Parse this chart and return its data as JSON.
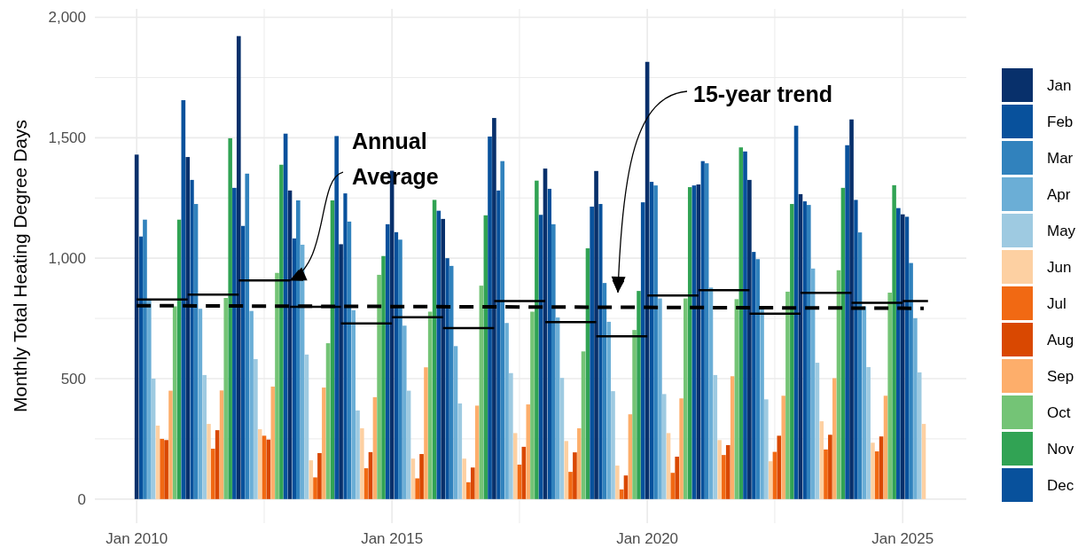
{
  "chart_data": {
    "type": "bar",
    "ylabel": "Monthly Total Heating Degree Days",
    "xlim": [
      "2009-03-08",
      "2026-04-01"
    ],
    "ylim": [
      -100,
      2035
    ],
    "xticks": [
      {
        "value": "2010-01",
        "label": "Jan 2010"
      },
      {
        "value": "2012-07",
        "label": null
      },
      {
        "value": "2015-01",
        "label": "Jan 2015"
      },
      {
        "value": "2017-07",
        "label": null
      },
      {
        "value": "2020-01",
        "label": "Jan 2020"
      },
      {
        "value": "2022-07",
        "label": null
      },
      {
        "value": "2025-01",
        "label": "Jan 2025"
      }
    ],
    "yticks": [
      {
        "value": 0,
        "label": "0"
      },
      {
        "value": 250,
        "label": null
      },
      {
        "value": 500,
        "label": "500"
      },
      {
        "value": 750,
        "label": null
      },
      {
        "value": 1000,
        "label": "1,000"
      },
      {
        "value": 1250,
        "label": null
      },
      {
        "value": 1500,
        "label": "1,500"
      },
      {
        "value": 1750,
        "label": null
      },
      {
        "value": 2000,
        "label": "2,000"
      }
    ],
    "grid": true,
    "legend": "right",
    "annotations": [
      {
        "text": "Annual Average",
        "x": "2013-01",
        "y": 908
      },
      "15-year trend"
    ],
    "series": [
      {
        "name": "Jan",
        "color": "#08306b",
        "x": [
          "2010-01",
          "2011-01",
          "2012-01",
          "2013-01",
          "2014-01",
          "2015-01",
          "2016-01",
          "2017-01",
          "2018-01",
          "2019-01",
          "2020-01",
          "2021-01",
          "2022-01",
          "2023-01",
          "2024-01",
          "2025-01"
        ],
        "values": [
          1430,
          1420,
          1922,
          1281,
          1058,
          1363,
          1163,
          1582,
          1372,
          1362,
          1815,
          1306,
          1325,
          1266,
          1576,
          1182
        ]
      },
      {
        "name": "Feb",
        "color": "#08519c",
        "x": [
          "2010-02",
          "2011-02",
          "2012-02",
          "2013-02",
          "2014-02",
          "2015-02",
          "2016-02",
          "2017-02",
          "2018-02",
          "2019-02",
          "2020-02",
          "2021-02",
          "2022-02",
          "2023-02",
          "2024-02",
          "2025-02"
        ],
        "values": [
          1090,
          1325,
          1134,
          1082,
          1269,
          1108,
          1000,
          1281,
          1288,
          1225,
          1317,
          1403,
          1026,
          1236,
          1242,
          1172
        ]
      },
      {
        "name": "Mar",
        "color": "#3182bd",
        "x": [
          "2010-03",
          "2011-03",
          "2012-03",
          "2013-03",
          "2014-03",
          "2015-03",
          "2016-03",
          "2017-03",
          "2018-03",
          "2019-03",
          "2020-03",
          "2021-03",
          "2022-03",
          "2023-03",
          "2024-03",
          "2025-03"
        ],
        "values": [
          1160,
          1225,
          1351,
          1240,
          1152,
          1077,
          968,
          1403,
          1141,
          897,
          1302,
          1394,
          996,
          1221,
          1107,
          980
        ]
      },
      {
        "name": "Apr",
        "color": "#6baed6",
        "x": [
          "2010-04",
          "2011-04",
          "2012-04",
          "2013-04",
          "2014-04",
          "2015-04",
          "2016-04",
          "2017-04",
          "2018-04",
          "2019-04",
          "2020-04",
          "2021-04",
          "2022-04",
          "2023-04",
          "2024-04",
          "2025-04"
        ],
        "values": [
          830,
          790,
          781,
          1056,
          784,
          720,
          635,
          731,
          754,
          736,
          833,
          878,
          790,
          957,
          800,
          751
        ]
      },
      {
        "name": "May",
        "color": "#9ecae1",
        "x": [
          "2010-05",
          "2011-05",
          "2012-05",
          "2013-05",
          "2014-05",
          "2015-05",
          "2016-05",
          "2017-05",
          "2018-05",
          "2019-05",
          "2020-05",
          "2021-05",
          "2022-05",
          "2023-05",
          "2024-05",
          "2025-05"
        ],
        "values": [
          500,
          515,
          581,
          600,
          368,
          450,
          397,
          523,
          503,
          448,
          436,
          515,
          414,
          566,
          548,
          526
        ]
      },
      {
        "name": "Jun",
        "color": "#fdd0a2",
        "x": [
          "2010-06",
          "2011-06",
          "2012-06",
          "2013-06",
          "2014-06",
          "2015-06",
          "2016-06",
          "2017-06",
          "2018-06",
          "2019-06",
          "2020-06",
          "2021-06",
          "2022-06",
          "2023-06",
          "2024-06",
          "2025-06"
        ],
        "values": [
          305,
          312,
          290,
          161,
          294,
          168,
          168,
          274,
          241,
          139,
          274,
          245,
          157,
          323,
          234,
          312
        ]
      },
      {
        "name": "Jul",
        "color": "#f16913",
        "x": [
          "2010-07",
          "2011-07",
          "2012-07",
          "2013-07",
          "2014-07",
          "2015-07",
          "2016-07",
          "2017-07",
          "2018-07",
          "2019-07",
          "2020-07",
          "2021-07",
          "2022-07",
          "2023-07",
          "2024-07"
        ],
        "values": [
          250,
          209,
          263,
          90,
          128,
          86,
          70,
          143,
          113,
          40,
          109,
          183,
          196,
          206,
          198
        ]
      },
      {
        "name": "Aug",
        "color": "#d94801",
        "x": [
          "2010-08",
          "2011-08",
          "2012-08",
          "2013-08",
          "2014-08",
          "2015-08",
          "2016-08",
          "2017-08",
          "2018-08",
          "2019-08",
          "2020-08",
          "2021-08",
          "2022-08",
          "2023-08",
          "2024-08"
        ],
        "values": [
          245,
          286,
          247,
          191,
          195,
          187,
          131,
          217,
          194,
          98,
          176,
          224,
          263,
          267,
          260
        ]
      },
      {
        "name": "Sep",
        "color": "#fdae6b",
        "x": [
          "2010-09",
          "2011-09",
          "2012-09",
          "2013-09",
          "2014-09",
          "2015-09",
          "2016-09",
          "2017-09",
          "2018-09",
          "2019-09",
          "2020-09",
          "2021-09",
          "2022-09",
          "2023-09",
          "2024-09"
        ],
        "values": [
          450,
          451,
          467,
          463,
          423,
          547,
          388,
          393,
          294,
          352,
          418,
          510,
          429,
          502,
          429
        ]
      },
      {
        "name": "Oct",
        "color": "#74c476",
        "x": [
          "2010-10",
          "2011-10",
          "2012-10",
          "2013-10",
          "2014-10",
          "2015-10",
          "2016-10",
          "2017-10",
          "2018-10",
          "2019-10",
          "2020-10",
          "2021-10",
          "2022-10",
          "2023-10",
          "2024-10"
        ],
        "values": [
          800,
          835,
          939,
          647,
          931,
          778,
          886,
          778,
          613,
          702,
          833,
          830,
          861,
          950,
          857
        ]
      },
      {
        "name": "Nov",
        "color": "#31a354",
        "x": [
          "2010-11",
          "2011-11",
          "2012-11",
          "2013-11",
          "2014-11",
          "2015-11",
          "2016-11",
          "2017-11",
          "2018-11",
          "2019-11",
          "2020-11",
          "2021-11",
          "2022-11",
          "2023-11",
          "2024-11"
        ],
        "values": [
          1160,
          1498,
          1388,
          1240,
          1009,
          1242,
          1178,
          1322,
          1041,
          864,
          1295,
          1460,
          1225,
          1292,
          1303
        ]
      },
      {
        "name": "Dec",
        "color": "#08519c",
        "x": [
          "2010-12",
          "2011-12",
          "2012-12",
          "2013-12",
          "2014-12",
          "2015-12",
          "2016-12",
          "2017-12",
          "2018-12",
          "2019-12",
          "2020-12",
          "2021-12",
          "2022-12",
          "2023-12",
          "2024-12"
        ],
        "values": [
          1656,
          1292,
          1517,
          1507,
          1141,
          1197,
          1505,
          1180,
          1214,
          1232,
          1302,
          1443,
          1550,
          1469,
          1208
        ]
      },
      {
        "type": "step",
        "color": "#000000",
        "line_style": "solid",
        "x": [
          "2010-01",
          "2011-01",
          "2012-01",
          "2013-01",
          "2014-01",
          "2015-01",
          "2016-01",
          "2017-01",
          "2018-01",
          "2019-01",
          "2020-01",
          "2021-01",
          "2022-01",
          "2023-01",
          "2024-01",
          "2025-01",
          "2025-07"
        ],
        "values": [
          829,
          849,
          908,
          798,
          729,
          755,
          710,
          822,
          735,
          676,
          845,
          867,
          770,
          856,
          815,
          822,
          822
        ]
      },
      {
        "type": "line",
        "color": "#000000",
        "line_style": "dashed",
        "x": [
          "2010-01",
          "2025-06"
        ],
        "values": [
          803,
          792
        ]
      }
    ]
  }
}
